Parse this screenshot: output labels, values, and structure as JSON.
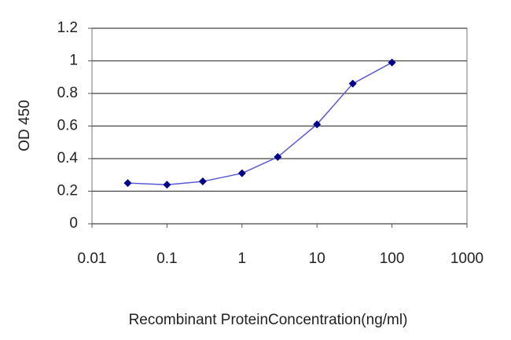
{
  "chart_data": {
    "type": "line",
    "x_label": "Recombinant ProteinConcentration(ng/ml)",
    "y_label": "OD 450",
    "x": [
      0.03,
      0.1,
      0.3,
      1,
      3,
      10,
      30,
      100
    ],
    "series": [
      {
        "color": "#5a5ad0",
        "marker_color": "#00008b",
        "values": [
          0.25,
          0.24,
          0.26,
          0.31,
          0.41,
          0.61,
          0.86,
          0.99
        ]
      }
    ],
    "xscale": "log",
    "xlim": [
      0.01,
      1000
    ],
    "xticks": [
      0.01,
      0.1,
      1,
      10,
      100,
      1000
    ],
    "ylim": [
      0,
      1.2
    ],
    "yticks": [
      0,
      0.2,
      0.4,
      0.6,
      0.8,
      1,
      1.2
    ],
    "grid": true
  }
}
